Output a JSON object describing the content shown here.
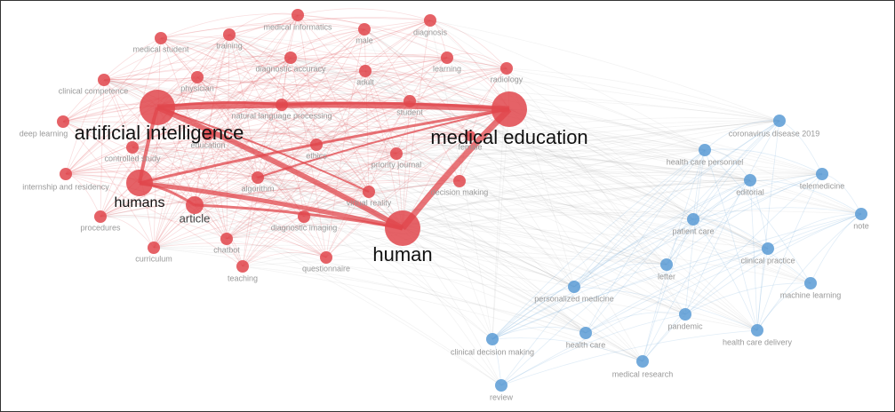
{
  "clusters": [
    {
      "color": "#e0474c",
      "nodes": [
        "artificial intelligence",
        "medical education",
        "human",
        "humans",
        "article",
        "medical informatics",
        "male",
        "diagnosis",
        "medical student",
        "training",
        "diagnostic accuracy",
        "adult",
        "learning",
        "radiology",
        "clinical competence",
        "physician",
        "natural language processing",
        "student",
        "deep learning",
        "controlled study",
        "education",
        "ethics",
        "priority journal",
        "internship and residency",
        "algorithm",
        "virtual reality",
        "decision making",
        "procedures",
        "diagnostic imaging",
        "curriculum",
        "chatbot",
        "questionnaire",
        "teaching",
        "female"
      ]
    },
    {
      "color": "#5b9bd5",
      "nodes": [
        "coronavirus disease 2019",
        "health care personnel",
        "editorial",
        "telemedicine",
        "note",
        "patient care",
        "clinical practice",
        "letter",
        "machine learning",
        "personalized medicine",
        "pandemic",
        "health care delivery",
        "health care",
        "clinical decision making",
        "medical research",
        "review"
      ]
    }
  ]
}
